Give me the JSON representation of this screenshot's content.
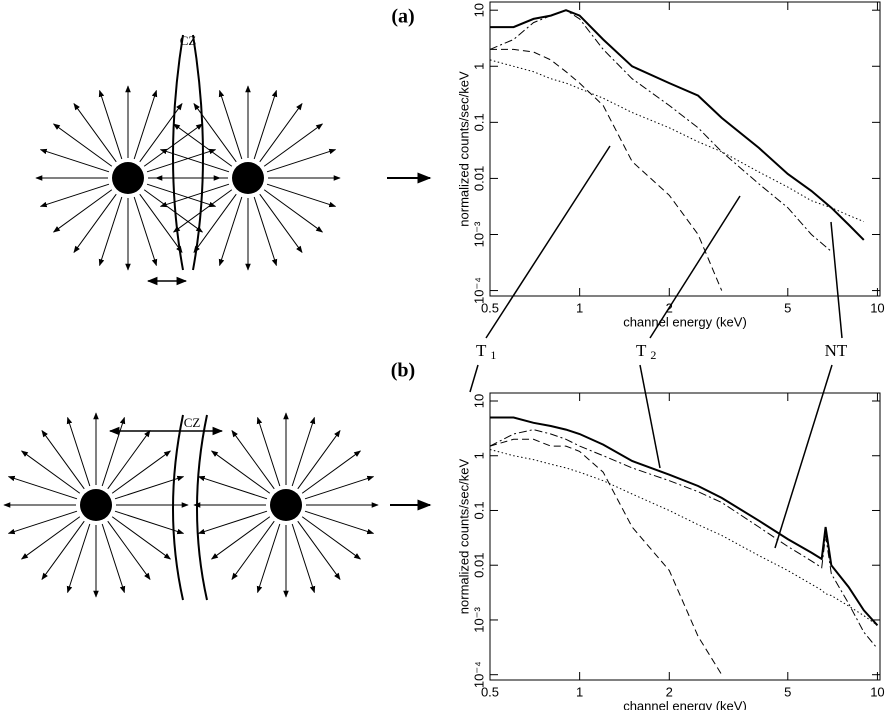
{
  "figure": {
    "panel_a": "(a)",
    "panel_b": "(b)",
    "cz_a": "CZ",
    "cz_b": "CZ",
    "t1": {
      "label": "T",
      "sub": "1"
    },
    "t2": {
      "label": "T",
      "sub": "2"
    },
    "nt": "NT"
  },
  "chart_data": [
    {
      "type": "line",
      "x_label": "channel energy (keV)",
      "y_label": "normalized counts/sec/keV",
      "xscale": "log",
      "yscale": "log",
      "xlim": [
        0.5,
        10.2
      ],
      "ylim": [
        8e-05,
        14
      ],
      "xticks": [
        0.5,
        1,
        2,
        5,
        10
      ],
      "yticks": [
        10,
        1,
        0.1,
        0.01,
        {
          "value": 0.001,
          "label": "10⁻³"
        },
        {
          "value": 0.0001,
          "label": "10⁻⁴"
        }
      ],
      "x": [
        0.5,
        0.6,
        0.7,
        0.8,
        0.9,
        1.0,
        1.2,
        1.5,
        2,
        2.5,
        3,
        4,
        5,
        6,
        7,
        8,
        9
      ],
      "series": [
        {
          "color": "#000",
          "dash": "solid",
          "width": 2,
          "values": [
            5,
            5,
            7,
            8,
            10,
            8,
            3,
            1,
            0.5,
            0.3,
            0.12,
            0.035,
            0.012,
            0.006,
            0.003,
            0.0015,
            0.0008
          ]
        },
        {
          "color": "#000",
          "dash": "dashdot",
          "width": 1,
          "values": [
            2,
            3,
            6,
            8,
            10,
            7,
            2,
            0.6,
            0.2,
            0.08,
            0.03,
            0.008,
            0.003,
            0.001,
            0.0005,
            null,
            null
          ]
        },
        {
          "color": "#000",
          "dash": "dashed",
          "width": 1,
          "values": [
            2,
            2,
            1.8,
            1.3,
            0.8,
            0.5,
            0.2,
            0.02,
            0.005,
            0.001,
            0.0001,
            null,
            null,
            null,
            null,
            null,
            null
          ]
        },
        {
          "color": "#000",
          "dash": "dotted",
          "width": 1,
          "values": [
            1.3,
            1.0,
            0.8,
            0.6,
            0.5,
            0.4,
            0.27,
            0.15,
            0.08,
            0.045,
            0.03,
            0.013,
            0.007,
            0.004,
            0.003,
            0.0022,
            0.0017
          ]
        }
      ]
    },
    {
      "type": "line",
      "x_label": "channel energy (keV)",
      "y_label": "normalized counts/sec/keV",
      "xscale": "log",
      "yscale": "log",
      "xlim": [
        0.5,
        10.2
      ],
      "ylim": [
        8e-05,
        14
      ],
      "xticks": [
        0.5,
        1,
        2,
        5,
        10
      ],
      "yticks": [
        10,
        1,
        0.1,
        0.01,
        {
          "value": 0.001,
          "label": "10⁻³"
        },
        {
          "value": 0.0001,
          "label": "10⁻⁴"
        }
      ],
      "x": [
        0.5,
        0.6,
        0.7,
        0.8,
        0.9,
        1.0,
        1.2,
        1.5,
        2,
        2.5,
        3,
        4,
        5,
        6,
        6.5,
        6.7,
        7,
        8,
        9,
        10
      ],
      "series": [
        {
          "color": "#000",
          "dash": "solid",
          "width": 2,
          "values": [
            5,
            5,
            4,
            3.5,
            3,
            2.5,
            1.6,
            0.8,
            0.45,
            0.28,
            0.17,
            0.065,
            0.03,
            0.017,
            0.013,
            0.05,
            0.01,
            0.004,
            0.0015,
            0.0008
          ]
        },
        {
          "color": "#000",
          "dash": "dashdot",
          "width": 1,
          "values": [
            1.5,
            2.5,
            3,
            2.5,
            2,
            1.5,
            1,
            0.6,
            0.35,
            0.22,
            0.14,
            0.05,
            0.022,
            0.012,
            0.009,
            0.035,
            0.007,
            0.002,
            0.0006,
            0.0003
          ]
        },
        {
          "color": "#000",
          "dash": "dashed",
          "width": 1,
          "values": [
            1.5,
            2,
            2,
            1.5,
            1.5,
            1.2,
            0.5,
            0.05,
            0.008,
            0.0005,
            0.0001,
            null,
            null,
            null,
            null,
            null,
            null,
            null,
            null,
            null
          ]
        },
        {
          "color": "#000",
          "dash": "dotted",
          "width": 1,
          "values": [
            1.3,
            1.0,
            0.85,
            0.7,
            0.6,
            0.5,
            0.35,
            0.2,
            0.1,
            0.055,
            0.035,
            0.015,
            0.008,
            0.0045,
            0.0035,
            0.003,
            0.0028,
            0.0018,
            0.0012,
            0.0008
          ]
        }
      ]
    }
  ]
}
